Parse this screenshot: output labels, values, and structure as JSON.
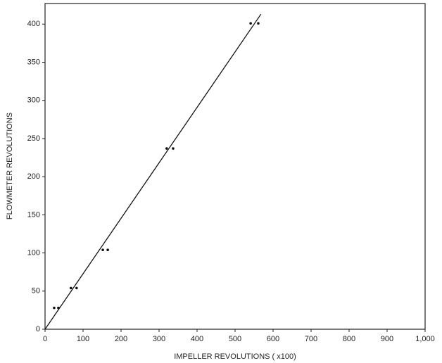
{
  "chart_data": {
    "type": "scatter",
    "x_label": "IMPELLER REVOLUTIONS ( x100)",
    "y_label": "FLOWMETER REVOLUTIONS",
    "xlim": [
      0,
      1000
    ],
    "ylim": [
      0,
      427
    ],
    "xticks": [
      0,
      100,
      200,
      300,
      400,
      500,
      600,
      700,
      800,
      900,
      {
        "value": 1000,
        "label": "1,000"
      }
    ],
    "yticks": [
      0,
      50,
      100,
      150,
      200,
      250,
      300,
      350,
      400
    ],
    "color": "#111111",
    "points": {
      "x": [
        24,
        35,
        68,
        83,
        152,
        165,
        320,
        337,
        541,
        561
      ],
      "values": [
        28,
        28,
        54,
        54,
        104,
        104,
        237,
        237,
        401,
        401
      ]
    },
    "fit_line": {
      "x": [
        0,
        568
      ],
      "values": [
        0,
        413
      ]
    }
  }
}
